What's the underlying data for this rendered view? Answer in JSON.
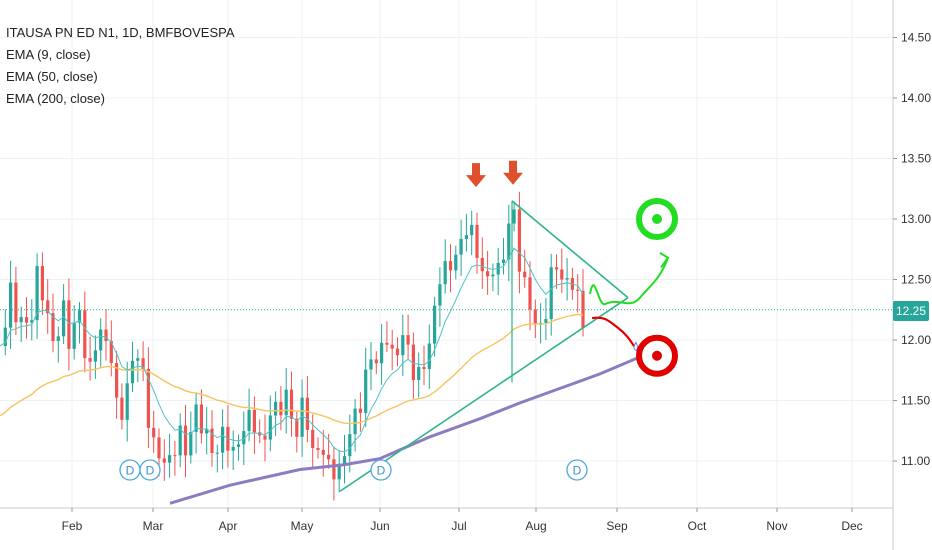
{
  "legend": {
    "title": "ITAUSA PN ED N1, 1D, BMFBOVESPA",
    "ema9": "EMA (9, close)",
    "ema50": "EMA (50, close)",
    "ema200": "EMA (200, close)"
  },
  "last_price": "12.25",
  "colors": {
    "up": "#26a69a",
    "down": "#ef5350",
    "ema9": "#4fc3c3",
    "ema50": "#f7c35f",
    "ema200": "#8e7cc3",
    "trendline": "#2bb58c",
    "target_up": "#22dd22",
    "target_down": "#e00000",
    "arrow": "#e0502c"
  },
  "chart_data": {
    "type": "candlestick",
    "y_axis_ticks": [
      "14.50",
      "14.00",
      "13.50",
      "13.00",
      "12.50",
      "12.00",
      "11.50",
      "11.00"
    ],
    "x_axis_ticks": [
      "Feb",
      "Mar",
      "Apr",
      "May",
      "Jun",
      "Jul",
      "Aug",
      "Sep",
      "Oct",
      "Nov",
      "Dec"
    ],
    "ylim": [
      10.62,
      14.9
    ],
    "dividend_markers": [
      {
        "label": "D",
        "date": "Feb 25"
      },
      {
        "label": "D",
        "date": "Mar 1"
      },
      {
        "label": "D",
        "date": "Jun 1"
      },
      {
        "label": "D",
        "date": "Aug 18"
      }
    ],
    "annotations": [
      {
        "type": "down-arrow",
        "date": "Jul 13",
        "price": 13.28
      },
      {
        "type": "down-arrow",
        "date": "Jul 26",
        "price": 13.3
      },
      {
        "type": "target-bullish",
        "date": "Sep 12",
        "price": 13.0
      },
      {
        "type": "target-bearish",
        "date": "Sep 12",
        "price": 11.87
      }
    ]
  }
}
